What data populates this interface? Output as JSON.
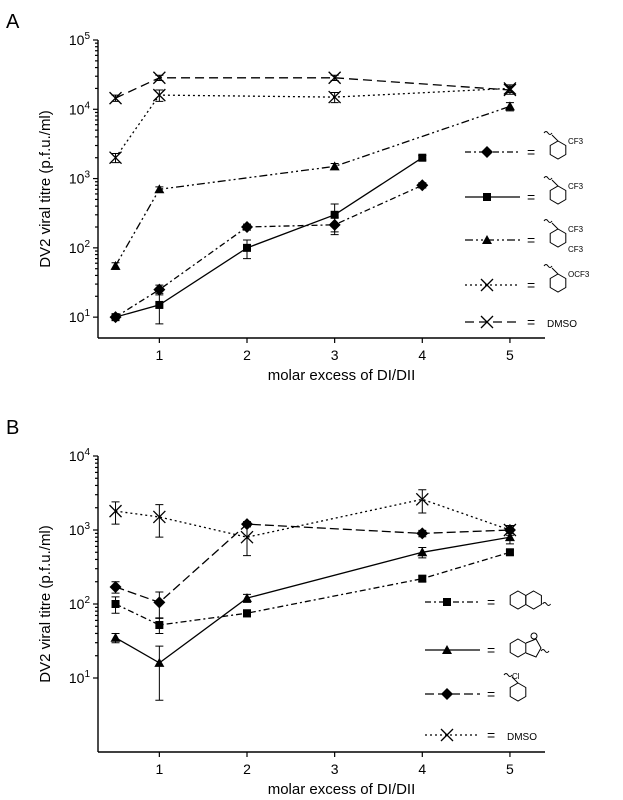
{
  "chart_data": [
    {
      "panel": "A",
      "type": "line",
      "xlabel": "molar excess of DI/DII",
      "ylabel": "DV2 viral titre (p.f.u./ml)",
      "yscale": "log",
      "xlim": [
        0.3,
        5.4
      ],
      "ylim": [
        5,
        100000
      ],
      "x_ticks": [
        "1",
        "2",
        "3",
        "4",
        "5"
      ],
      "y_ticks": [
        {
          "value": 10,
          "base": "10",
          "exp": "1"
        },
        {
          "value": 100,
          "base": "10",
          "exp": "2"
        },
        {
          "value": 1000,
          "base": "10",
          "exp": "3"
        },
        {
          "value": 10000,
          "base": "10",
          "exp": "4"
        },
        {
          "value": 100000,
          "base": "10",
          "exp": "5"
        }
      ],
      "series": [
        {
          "key": "a1",
          "marker": "diamond",
          "dash": "6,3,2,3",
          "x": [
            0.5,
            1,
            2,
            3,
            4
          ],
          "y": [
            10,
            25,
            200,
            215,
            800
          ],
          "err": [
            0.4,
            4,
            20,
            60,
            70
          ],
          "legend_texts": [
            "CF3"
          ]
        },
        {
          "key": "a2",
          "marker": "square",
          "dash": "",
          "x": [
            0.5,
            1,
            2,
            3,
            4
          ],
          "y": [
            10,
            15,
            100,
            300,
            2000
          ],
          "err": [
            0.4,
            7,
            30,
            130,
            150
          ],
          "legend_texts": [
            "CF3"
          ]
        },
        {
          "key": "a3",
          "marker": "triangle",
          "dash": "8,3,2,3,2,3",
          "x": [
            0.5,
            1,
            3,
            5
          ],
          "y": [
            55,
            700,
            1500,
            11000
          ],
          "err": [
            6,
            60,
            150,
            1500
          ],
          "legend_texts": [
            "CF3",
            "CF3"
          ]
        },
        {
          "key": "a4",
          "marker": "cross",
          "dash": "2,3",
          "x": [
            0.5,
            1,
            3,
            5
          ],
          "y": [
            2000,
            16000,
            15000,
            20000
          ],
          "err": [
            300,
            3000,
            2500,
            2500
          ],
          "legend_texts": [
            "OCF3"
          ]
        },
        {
          "key": "a5",
          "marker": "cross",
          "dash": "9,5",
          "x": [
            0.5,
            1,
            3,
            5
          ],
          "y": [
            14500,
            28500,
            28500,
            19000
          ],
          "err": [
            1500,
            2500,
            2500,
            2500
          ],
          "legend_texts": [
            "DMSO"
          ]
        }
      ]
    },
    {
      "panel": "B",
      "type": "line",
      "xlabel": "molar excess of DI/DII",
      "ylabel": "DV2 viral titre (p.f.u./ml)",
      "yscale": "log",
      "xlim": [
        0.3,
        5.4
      ],
      "ylim": [
        1,
        10000
      ],
      "x_ticks": [
        "1",
        "2",
        "3",
        "4",
        "5"
      ],
      "y_ticks": [
        {
          "value": 10,
          "base": "10",
          "exp": "1"
        },
        {
          "value": 100,
          "base": "10",
          "exp": "2"
        },
        {
          "value": 1000,
          "base": "10",
          "exp": "3"
        },
        {
          "value": 10000,
          "base": "10",
          "exp": "4"
        }
      ],
      "series": [
        {
          "key": "b1",
          "marker": "square",
          "dash": "6,3,2,3",
          "x": [
            0.5,
            1,
            2,
            4,
            5
          ],
          "y": [
            100,
            52,
            75,
            220,
            500
          ],
          "err": [
            25,
            12,
            8,
            20,
            40
          ],
          "legend_texts": []
        },
        {
          "key": "b2",
          "marker": "triangle",
          "dash": "",
          "x": [
            0.5,
            1,
            2,
            4,
            5
          ],
          "y": [
            35,
            16,
            120,
            500,
            800
          ],
          "err": [
            5,
            11,
            15,
            80,
            150
          ],
          "legend_texts": []
        },
        {
          "key": "b3",
          "marker": "diamond",
          "dash": "9,4",
          "x": [
            0.5,
            1,
            2,
            4,
            5
          ],
          "y": [
            170,
            105,
            1200,
            900,
            1000
          ],
          "err": [
            30,
            40,
            100,
            90,
            100
          ],
          "legend_texts": [
            "Cl"
          ]
        },
        {
          "key": "b4",
          "marker": "cross",
          "dash": "2,3",
          "x": [
            0.5,
            1,
            2,
            4,
            5
          ],
          "y": [
            1800,
            1500,
            800,
            2600,
            1000
          ],
          "err": [
            600,
            700,
            350,
            900,
            150
          ],
          "legend_texts": [
            "DMSO"
          ]
        }
      ]
    }
  ]
}
